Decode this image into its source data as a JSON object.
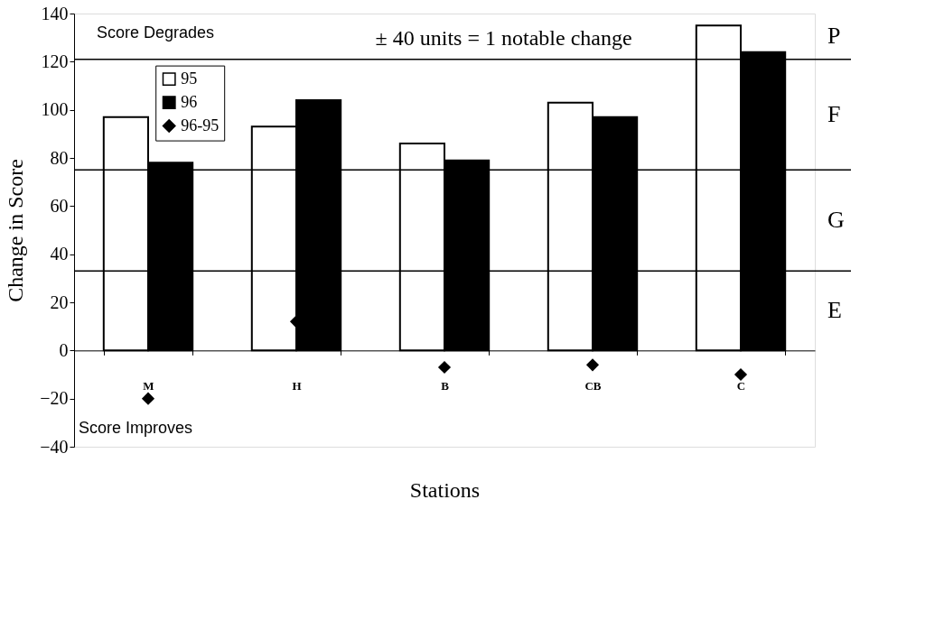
{
  "chart_data": {
    "type": "bar",
    "xlabel": "Stations",
    "ylabel": "Change in Score",
    "categories": [
      "M",
      "H",
      "B",
      "CB",
      "C"
    ],
    "series": [
      {
        "name": "95",
        "color": "#ffffff",
        "values": [
          97,
          93,
          86,
          103,
          135
        ]
      },
      {
        "name": "96",
        "color": "#000000",
        "values": [
          78,
          104,
          79,
          97,
          124
        ]
      },
      {
        "name": "96-95",
        "color": "#000000",
        "type": "scatter",
        "marker": "diamond",
        "values": [
          -20,
          12,
          -7,
          -6,
          -10
        ]
      }
    ],
    "ylim": [
      -40,
      140
    ],
    "yticks": [
      -40,
      -20,
      0,
      20,
      40,
      60,
      80,
      100,
      120,
      140
    ],
    "ref_lines": [
      {
        "axis": "y",
        "value": 33
      },
      {
        "axis": "y",
        "value": 75
      },
      {
        "axis": "y",
        "value": 121
      }
    ],
    "annotations": [
      "Score Degrades",
      "± 40 units = 1 notable change",
      "Score Improves",
      "P",
      "F",
      "G",
      "E"
    ],
    "legend": "top left",
    "grid": false
  }
}
